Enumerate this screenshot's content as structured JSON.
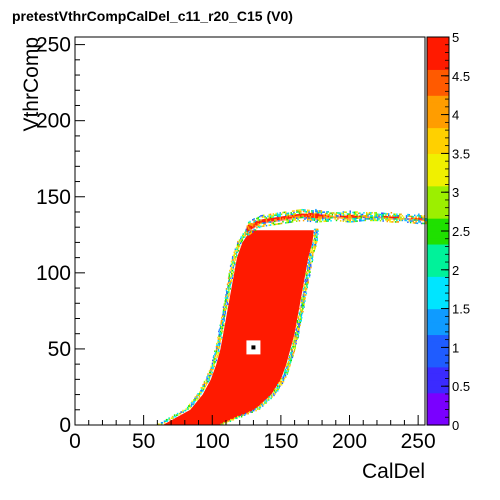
{
  "chart_data": {
    "type": "heatmap",
    "title": "pretestVthrCompCalDel_c11_r20_C15 (V0)",
    "xlabel": "CalDel",
    "ylabel": "VthrComp",
    "xlim": [
      0,
      255
    ],
    "ylim": [
      0,
      255
    ],
    "x_ticks": [
      0,
      50,
      100,
      150,
      200,
      250
    ],
    "y_ticks": [
      0,
      50,
      100,
      150,
      200,
      250
    ],
    "z_range": [
      0,
      5
    ],
    "z_ticks": [
      "0",
      "0.5",
      "1",
      "1.5",
      "2",
      "2.5",
      "3",
      "3.5",
      "4",
      "4.5",
      "5"
    ],
    "z_palette": [
      "#7a00ff",
      "#3b2bff",
      "#1f5cff",
      "#0f9bff",
      "#00e5ff",
      "#00f29a",
      "#1fe000",
      "#9cef00",
      "#f0f000",
      "#ffd000",
      "#ff9d00",
      "#ff5a00",
      "#ff1a00"
    ],
    "grid": false,
    "region_full": {
      "y": [
        0,
        10,
        20,
        30,
        40,
        50,
        60,
        70,
        80,
        90,
        100,
        110,
        120,
        128
      ],
      "x_left": [
        64,
        84,
        93,
        99,
        103,
        106,
        108,
        110,
        112,
        114,
        116,
        118,
        122,
        128
      ],
      "x_right": [
        105,
        131,
        143,
        150,
        154,
        157,
        160,
        162,
        164,
        166,
        168,
        170,
        173,
        174
      ]
    },
    "plateau": {
      "x": [
        125,
        135,
        150,
        165,
        175,
        190,
        200,
        210,
        220,
        230,
        240,
        250,
        255
      ],
      "y_top": [
        133,
        137,
        139,
        141,
        141,
        139,
        140,
        139,
        139,
        139,
        138,
        138,
        137
      ],
      "y_bottom": [
        124,
        130,
        132,
        134,
        133,
        134,
        133,
        134,
        134,
        133,
        133,
        132,
        132
      ]
    },
    "marker": {
      "x": 130,
      "y": 51,
      "value": 0
    }
  }
}
